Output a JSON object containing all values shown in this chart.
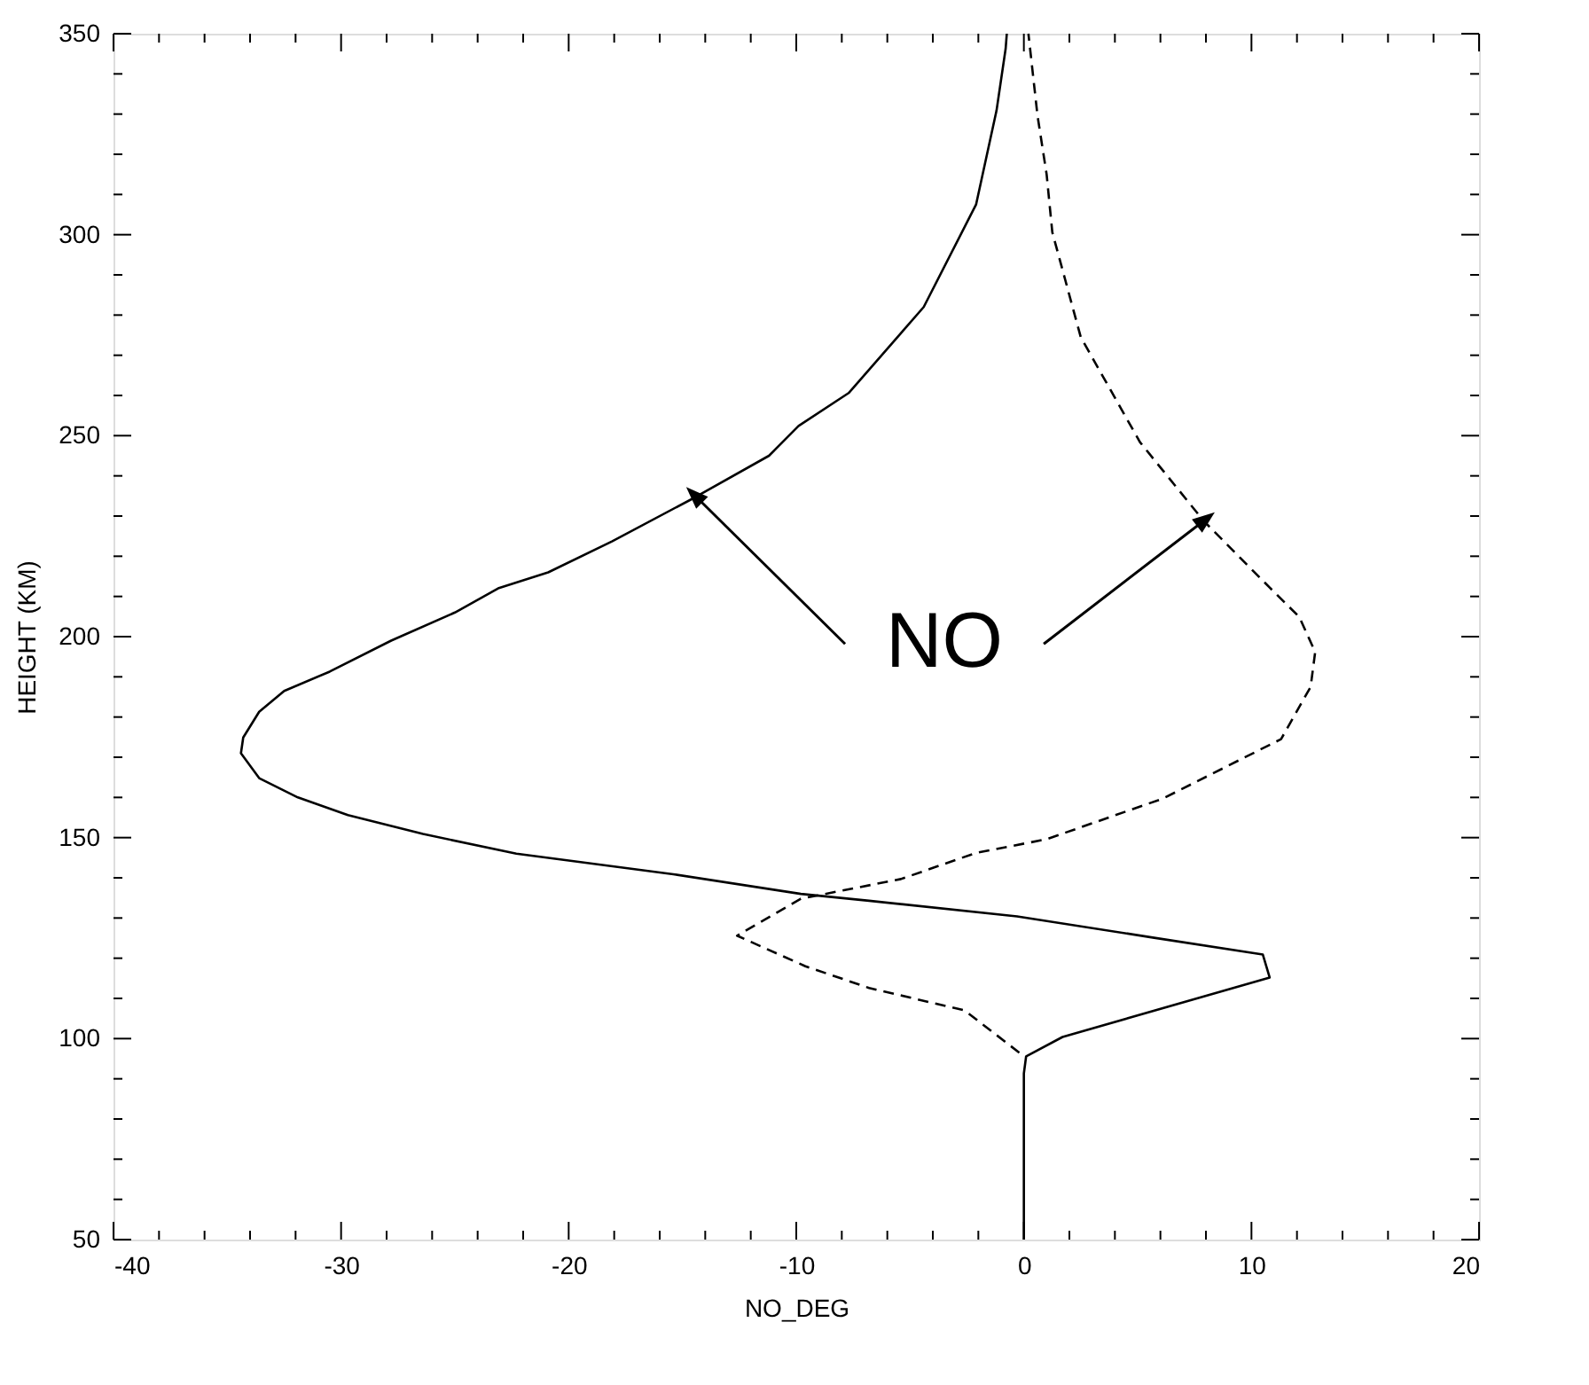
{
  "chart_data": {
    "type": "line",
    "xlabel": "NO_DEG",
    "ylabel": "HEIGHT (KM)",
    "xlim": [
      -40,
      20
    ],
    "ylim": [
      50,
      350
    ],
    "xticks": [
      -40,
      {
        "value": -38,
        "label": null
      },
      {
        "value": -36,
        "label": null
      },
      {
        "value": -34,
        "label": null
      },
      {
        "value": -32,
        "label": null
      },
      -30,
      {
        "value": -28,
        "label": null
      },
      {
        "value": -26,
        "label": null
      },
      {
        "value": -24,
        "label": null
      },
      {
        "value": -22,
        "label": null
      },
      -20,
      {
        "value": -18,
        "label": null
      },
      {
        "value": -16,
        "label": null
      },
      {
        "value": -14,
        "label": null
      },
      {
        "value": -12,
        "label": null
      },
      -10,
      {
        "value": -8,
        "label": null
      },
      {
        "value": -6,
        "label": null
      },
      {
        "value": -4,
        "label": null
      },
      {
        "value": -2,
        "label": null
      },
      0,
      {
        "value": 2,
        "label": null
      },
      {
        "value": 4,
        "label": null
      },
      {
        "value": 6,
        "label": null
      },
      {
        "value": 8,
        "label": null
      },
      10,
      {
        "value": 12,
        "label": null
      },
      {
        "value": 14,
        "label": null
      },
      {
        "value": 16,
        "label": null
      },
      {
        "value": 18,
        "label": null
      },
      20
    ],
    "yticks": [
      50,
      {
        "value": 60,
        "label": null
      },
      {
        "value": 70,
        "label": null
      },
      {
        "value": 80,
        "label": null
      },
      {
        "value": 90,
        "label": null
      },
      100,
      {
        "value": 110,
        "label": null
      },
      {
        "value": 120,
        "label": null
      },
      {
        "value": 130,
        "label": null
      },
      {
        "value": 140,
        "label": null
      },
      150,
      {
        "value": 160,
        "label": null
      },
      {
        "value": 170,
        "label": null
      },
      {
        "value": 180,
        "label": null
      },
      {
        "value": 190,
        "label": null
      },
      200,
      {
        "value": 210,
        "label": null
      },
      {
        "value": 220,
        "label": null
      },
      {
        "value": 230,
        "label": null
      },
      {
        "value": 240,
        "label": null
      },
      250,
      {
        "value": 260,
        "label": null
      },
      {
        "value": 270,
        "label": null
      },
      {
        "value": 280,
        "label": null
      },
      {
        "value": 290,
        "label": null
      },
      300,
      {
        "value": 310,
        "label": null
      },
      {
        "value": 320,
        "label": null
      },
      {
        "value": 330,
        "label": null
      },
      {
        "value": 340,
        "label": null
      },
      350
    ],
    "grid": false,
    "marker": "none",
    "annotations": [
      {
        "text": "NO",
        "x": -14.4,
        "y": 234.8
      }
    ],
    "series": [
      {
        "color": "#000000",
        "line_style": "solid",
        "x": [
          0,
          0,
          0.1,
          1.7,
          10.8,
          10.5,
          5.6,
          -0.3,
          -6.8,
          -9.8,
          -15.4,
          -22.3,
          -26.4,
          -29.7,
          -31.9,
          -33.6,
          -34.4,
          -34.3,
          -33.6,
          -32.5,
          -30.5,
          -27.8,
          -25,
          -23.1,
          -20.9,
          -18.1,
          -14.4,
          -11.2,
          -9.9,
          -7.7,
          -4.4,
          -2.1,
          -1.2,
          -0.8,
          -0.75
        ],
        "values": [
          50,
          91.3,
          95.6,
          100.4,
          115.2,
          120.9,
          125.2,
          130.4,
          134.3,
          136,
          140.9,
          146,
          150.9,
          155.6,
          160,
          164.8,
          171,
          174.9,
          181.3,
          186.5,
          191.3,
          199,
          206,
          212,
          216,
          223.7,
          234.8,
          245,
          252.4,
          260.6,
          282,
          307.5,
          330.9,
          346.3,
          350
        ]
      },
      {
        "color": "#000000",
        "line_style": "dashed",
        "x": [
          -0.2,
          -2.6,
          -6.8,
          -9.6,
          -12.6,
          -9.8,
          -5.4,
          -2.1,
          1.0,
          6.1,
          11.3,
          12.6,
          12.8,
          12.1,
          10.8,
          7.9,
          5.1,
          2.5,
          1.25,
          1.0,
          0.6,
          0.2
        ],
        "values": [
          96.5,
          107,
          112.6,
          118,
          125.6,
          134.8,
          139.7,
          146.2,
          149.6,
          159.7,
          174.5,
          187.5,
          196.2,
          204.9,
          212.2,
          228.8,
          248.4,
          274.5,
          300.6,
          315,
          329.6,
          350
        ]
      }
    ]
  }
}
